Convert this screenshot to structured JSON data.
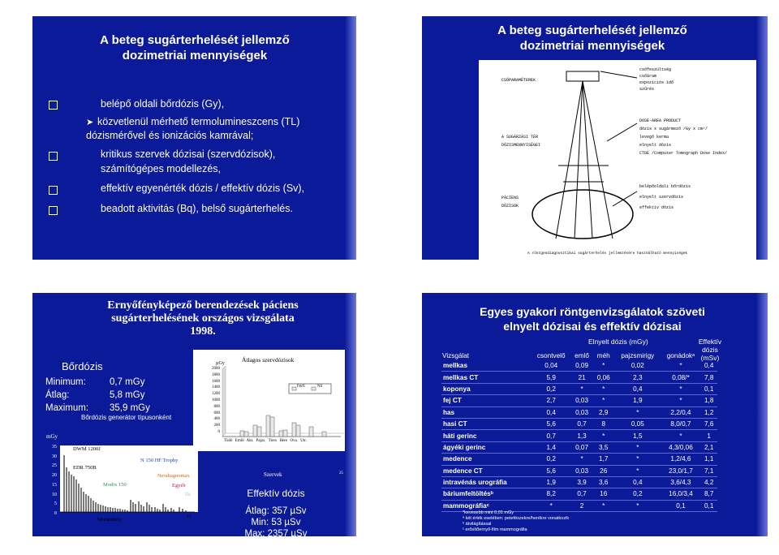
{
  "slide1": {
    "title": "A beteg sugárterhelését jellemző",
    "title2": "dozimetriai mennyiségek",
    "b1": "belépő oldali bőrdózis (Gy),",
    "sub1a": "közvetlenül mérhető termolumineszcens (TL)",
    "sub1b": "dózismérővel és ionizációs kamrával;",
    "b2a": "kritikus szervek dózisai (szervdózisok),",
    "b2b": "számítógépes modellezés,",
    "b3": "effektív egyenérték dózis / effektív dózis (Sv),",
    "b4": "beadott aktivitás (Bq), belső sugárterhelés."
  },
  "slide2": {
    "title": "A beteg sugárterhelését jellemző",
    "title2": "dozimetriai mennyiségek",
    "csoparam": "CSŐPARAMÉTEREK",
    "r1": "csőfeszültség",
    "r2": "csőáram",
    "r3": "expozíciós idő",
    "r4": "szűrés",
    "sugar1": "A SUGÁRZÁSI TÉR",
    "sugar2": "DÓZISMENNYISÉGEI",
    "dap1": "DOSE-AREA PRODUCT",
    "dap2": "dózis x sugármező /Gy x cm²/",
    "kerma": "levegő kerma",
    "elnyelt": "elnyelt dózis",
    "ctde": "CTDE /Computer Tomograph Dose Index/",
    "pac1": "PÁCIENS",
    "pac2": "DÓZISOK",
    "belepo": "belépőoldali bőrdózis",
    "szerv": "elnyelt szervdózis",
    "eff": "effektív dózis",
    "caption": "A röntgendiagnosztikai sugárterhelés jellemzésére használható mennyiségek"
  },
  "slide3": {
    "title1": "Ernyőfényképező berendezések páciens",
    "title2": "sugárterhelésének országos vizsgálata",
    "title3": "1998.",
    "bordozis": "Bőrdózis",
    "min_l": "Minimum:",
    "min_v": "0,7 mGy",
    "avg_l": "Átlag:",
    "avg_v": "5,8 mGy",
    "max_l": "Maximum:",
    "max_v": "35,9 mGy",
    "gen_title": "Bőrdózis generátor típusonként",
    "left_unit": "mGy",
    "left_yticks": [
      "35",
      "30",
      "25",
      "20",
      "15",
      "10",
      "5",
      "0"
    ],
    "lbl_dwm": "DWM 1200J",
    "lbl_edr": "EDR 750B",
    "lbl_modix": "Modix 150",
    "lbl_n150": "N 150 HF Trophy",
    "lbl_neo": "Neodiagnomax",
    "lbl_egyeb": "Egyéb",
    "lbl_ut": "Út.",
    "munkahely": "Munkahely",
    "pg1": "24",
    "right_title": "Átlagos szervdózisok",
    "right_unit": "µGy",
    "right_yticks": [
      "2000",
      "1800",
      "1600",
      "1400",
      "1200",
      "1000",
      "800",
      "600",
      "400",
      "200",
      "0"
    ],
    "right_xticks": "Tüdő Emlő Akt. Pajzs. Tirex Here Ova. Utr.",
    "legend_m": "Férfi",
    "legend_f": "Nő",
    "szervek": "Szervek",
    "pg2": "25",
    "eff_title": "Effektív dózis",
    "eff_avg": "Átlag: 357 µSv",
    "eff_min": "Min: 53 µSv",
    "eff_max": "Max: 2357 µSv"
  },
  "slide4": {
    "title1": "Egyes gyakori röntgenvizsgálatok szöveti",
    "title2": "elnyelt dózisai és effektív dózisai",
    "hdr_group": "Elnyelt dózis (mGy)",
    "hdr_eff1": "Effektív",
    "hdr_eff2": "dózis",
    "hdr_eff3": "(mSv)",
    "cols": [
      "Vizsgálat",
      "csontvelő",
      "emlő",
      "méh",
      "pajzsmirigy",
      "gonádokᵃ"
    ],
    "rows": [
      [
        "mellkas",
        "0,04",
        "0,09",
        "*",
        "0,02",
        "*",
        "0,4"
      ],
      [
        "mellkas CT",
        "5,9",
        "21",
        "0,06",
        "2,3",
        "0,08/*",
        "7,8"
      ],
      [
        "koponya",
        "0,2",
        "*",
        "*",
        "0,4",
        "*",
        "0,1"
      ],
      [
        "fej CT",
        "2,7",
        "0,03",
        "*",
        "1,9",
        "*",
        "1,8"
      ],
      [
        "has",
        "0,4",
        "0,03",
        "2,9",
        "*",
        "2,2/0,4",
        "1,2"
      ],
      [
        "hasi CT",
        "5,6",
        "0,7",
        "8",
        "0,05",
        "8,0/0,7",
        "7,6"
      ],
      [
        "háti gerinc",
        "0,7",
        "1,3",
        "*",
        "1,5",
        "*",
        "1"
      ],
      [
        "ágyéki gerinc",
        "1,4",
        "0,07",
        "3,5",
        "*",
        "4,3/0,06",
        "2,1"
      ],
      [
        "medence",
        "0,2",
        "*",
        "1,7",
        "*",
        "1,2/4,6",
        "1,1"
      ],
      [
        "medence CT",
        "5,6",
        "0,03",
        "26",
        "*",
        "23,0/1,7",
        "7,1"
      ],
      [
        "intravénás urográfia",
        "1,9",
        "3,9",
        "3,6",
        "0,4",
        "3,6/4,3",
        "4,2"
      ],
      [
        "báriumfeltöltésᵇ",
        "8,2",
        "0,7",
        "16",
        "0,2",
        "16,0/3,4",
        "8,7"
      ],
      [
        "mammográfiaᶜ",
        "*",
        "2",
        "*",
        "*",
        "0,1",
        "0,1"
      ]
    ],
    "foot1": "*kevesebb mint 0,01 mGy",
    "foot2": "ᵃ két érték esetében: petefészekre/herékre vonatkozik",
    "foot3": "ᵇ átvilágítással",
    "foot4": "ᶜ erősítőernyő-film mammográfia"
  }
}
